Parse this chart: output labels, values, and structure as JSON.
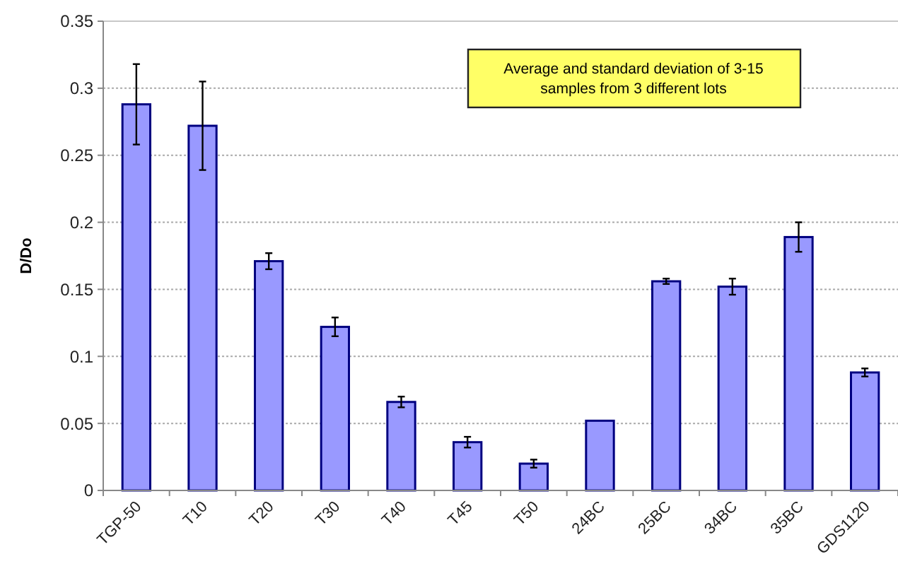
{
  "chart_data": {
    "type": "bar",
    "ylabel": "D/Do",
    "categories": [
      "TGP-50",
      "T10",
      "T20",
      "T30",
      "T40",
      "T45",
      "T50",
      "24BC",
      "25BC",
      "34BC",
      "35BC",
      "GDS1120"
    ],
    "values": [
      0.288,
      0.272,
      0.171,
      0.122,
      0.066,
      0.036,
      0.02,
      0.052,
      0.156,
      0.152,
      0.189,
      0.088
    ],
    "errors": [
      0.03,
      0.033,
      0.006,
      0.007,
      0.004,
      0.004,
      0.003,
      null,
      0.002,
      0.006,
      0.011,
      0.003
    ],
    "color": "#9999ff",
    "ylim": [
      0,
      0.35
    ],
    "yticks": [
      0,
      0.05,
      0.1,
      0.15,
      0.2,
      0.25,
      0.3,
      0.35
    ],
    "grid": "y",
    "annotations": [
      "Average and standard deviation of 3-15 samples from 3 different lots"
    ]
  }
}
